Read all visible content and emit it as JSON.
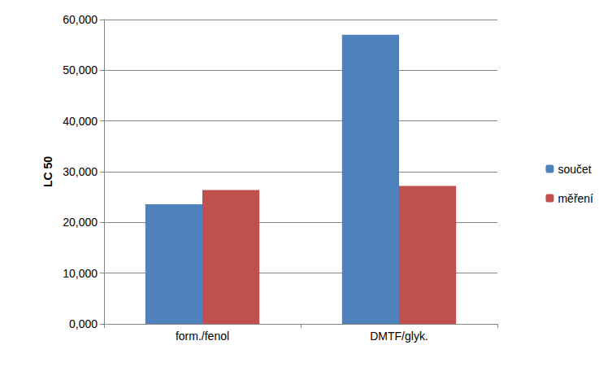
{
  "chart_data": {
    "type": "bar",
    "y_label": "LC 50",
    "categories": [
      "form./fenol",
      "DMTF/glyk."
    ],
    "series": [
      {
        "name": "součet",
        "color": "#4f81bd",
        "values": [
          23.6,
          57.0
        ]
      },
      {
        "name": "měření",
        "color": "#c0504d",
        "values": [
          26.4,
          27.2
        ]
      }
    ],
    "ylim": [
      0,
      60
    ],
    "yticks": [
      {
        "value": 0,
        "label": "0,000"
      },
      {
        "value": 10,
        "label": "10,000"
      },
      {
        "value": 20,
        "label": "20,000"
      },
      {
        "value": 30,
        "label": "30,000"
      },
      {
        "value": 40,
        "label": "40,000"
      },
      {
        "value": 50,
        "label": "50,000"
      },
      {
        "value": 60,
        "label": "60,000"
      }
    ],
    "grid": true,
    "legend": "right"
  }
}
